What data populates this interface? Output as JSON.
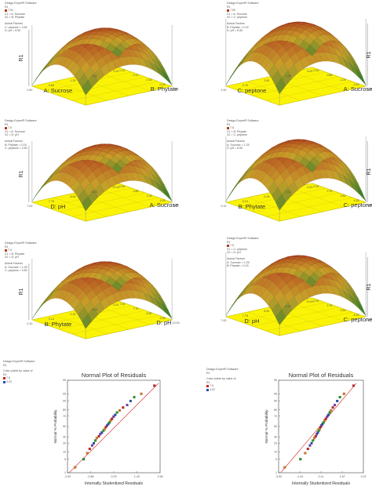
{
  "colors": {
    "surface_high": "#b23a1e",
    "surface_mid": "#c9a12a",
    "surface_low": "#2f7d2a",
    "floor": "#fbf306",
    "floor_edge": "#c9c300",
    "ref_line": "#d9534f",
    "point_colors": [
      "#1f4fbf",
      "#18a018",
      "#e07b1a",
      "#d02020",
      "#7a3ab0"
    ]
  },
  "chart_data": [
    {
      "type": "surface",
      "info_lines": [
        "Design-Expert® Software",
        "R1",
        "7.51",
        "",
        "X1 = A: Sucrose",
        "X2 = B: Phytate",
        "",
        "Actual Factors",
        "C: peptone = 3.50",
        "D: pH = 8.50"
      ],
      "zlabel": "R1",
      "xlabel": "A: Sucrose",
      "ylabel": "B: Phytate",
      "x_ticks": [
        "0.50",
        "0.88",
        "1.25",
        "1.63",
        "2.00"
      ],
      "y_ticks": [
        "0.10",
        "0.13",
        "0.15",
        "0.18",
        "0.20"
      ]
    },
    {
      "type": "surface",
      "info_lines": [
        "Design-Expert® Software",
        "R1",
        "7.52",
        "",
        "X1 = A: Sucrose",
        "X2 = C: peptone",
        "",
        "Actual Factors",
        "B: Phytate = 0.15",
        "D: pH = 8.50"
      ],
      "zlabel": "R1",
      "xlabel": "C: peptone",
      "ylabel": "A: Sucrose",
      "x_ticks": [
        "2.00",
        "2.75",
        "3.50",
        "4.25",
        "5.00"
      ],
      "y_ticks": [
        "0.50",
        "0.88",
        "1.25",
        "1.63",
        "2.00"
      ]
    },
    {
      "type": "surface",
      "info_lines": [
        "Design-Expert® Software",
        "R1",
        "7.5",
        "",
        "X1 = A: Sucrose",
        "X2 = D: pH",
        "",
        "Actual Factors",
        "B: Phytate = 0.15",
        "C: peptone = 3.50"
      ],
      "zlabel": "R1",
      "xlabel": "D: pH",
      "ylabel": "A: Sucrose",
      "x_ticks": [
        "7.00",
        "7.75",
        "8.50",
        "9.25",
        "10.00"
      ],
      "y_ticks": [
        "0.50",
        "0.88",
        "1.25",
        "1.63",
        "2.00"
      ]
    },
    {
      "type": "surface",
      "info_lines": [
        "Design-Expert® Software",
        "R1",
        "7.5",
        "",
        "X1 = B: Phytate",
        "X2 = C: peptone",
        "",
        "Actual Factors",
        "A: Sucrose = 1.25",
        "D: pH = 8.50"
      ],
      "zlabel": "R1",
      "xlabel": "B: Phytate",
      "ylabel": "C: peptone",
      "x_ticks": [
        "0.10",
        "0.13",
        "0.15",
        "0.18",
        "0.20"
      ],
      "y_ticks": [
        "2.00",
        "2.75",
        "3.50",
        "4.25",
        "5.00"
      ]
    },
    {
      "type": "surface",
      "info_lines": [
        "Design-Expert® Software",
        "R1",
        "7.5",
        "",
        "X1 = B: Phytate",
        "X2 = D: pH",
        "",
        "Actual Factors",
        "A: Sucrose = 1.25",
        "C: peptone = 3.50"
      ],
      "zlabel": "R1",
      "xlabel": "B: Phytate",
      "ylabel": "D: pH",
      "x_ticks": [
        "0.10",
        "0.13",
        "0.15",
        "0.18",
        "0.20"
      ],
      "y_ticks": [
        "7.00",
        "7.75",
        "8.50",
        "9.25",
        "10.00"
      ]
    },
    {
      "type": "surface",
      "info_lines": [
        "Design-Expert® Software",
        "R1",
        "7.5",
        "",
        "X1 = C: peptone",
        "X2 = D: pH",
        "",
        "Actual Factors",
        "A: Sucrose = 1.25",
        "B: Phytate = 0.15"
      ],
      "zlabel": "R1",
      "xlabel": "D: pH",
      "ylabel": "C: peptone",
      "x_ticks": [
        "7.00",
        "7.75",
        "8.50",
        "9.25",
        "10.00"
      ],
      "y_ticks": [
        "2.00",
        "2.75",
        "3.50",
        "4.25",
        "5.00"
      ]
    },
    {
      "type": "scatter",
      "info_lines": [
        "Design-Expert® Software",
        "R1",
        "",
        "Color points by value of",
        "R1",
        "7.5",
        "4.22"
      ],
      "title": "Normal Plot of Residuals",
      "xlabel": "Internally Studentized Residuals",
      "ylabel": "Normal % Probability",
      "x_ticks": [
        "-2.00",
        "-0.86",
        "0.29",
        "1.43",
        "2.58"
      ],
      "y_ticks": [
        "1",
        "5",
        "10",
        "20",
        "30",
        "50",
        "70",
        "80",
        "90",
        "95",
        "99"
      ],
      "xlim": [
        -2.0,
        2.58
      ],
      "ylim": [
        1,
        99
      ],
      "x": [
        -1.62,
        -1.2,
        -1.02,
        -0.9,
        -0.78,
        -0.7,
        -0.62,
        -0.55,
        -0.45,
        -0.38,
        -0.3,
        -0.22,
        -0.16,
        -0.1,
        -0.04,
        0.02,
        0.08,
        0.14,
        0.2,
        0.28,
        0.36,
        0.45,
        0.58,
        0.75,
        0.95,
        1.12,
        1.3,
        1.65,
        2.3
      ],
      "y": [
        2,
        5,
        9,
        13,
        17,
        20,
        24,
        28,
        31,
        35,
        38,
        42,
        45,
        49,
        52,
        55,
        58,
        62,
        65,
        69,
        72,
        76,
        79,
        83,
        86,
        90,
        93,
        95,
        98
      ]
    },
    {
      "type": "scatter",
      "info_lines": [
        "Design-Expert® Software",
        "R1",
        "",
        "Color points by value of",
        "R1",
        "7.5",
        "4.22"
      ],
      "title": "Normal Plot of Residuals",
      "xlabel": "Internally Studentized Residuals",
      "ylabel": "Normal % Probability",
      "x_ticks": [
        "-3.00",
        "-1.44",
        "0.11",
        "1.67",
        "3.22"
      ],
      "y_ticks": [
        "1",
        "5",
        "10",
        "20",
        "30",
        "50",
        "70",
        "80",
        "90",
        "95",
        "99"
      ],
      "xlim": [
        -3.0,
        3.22
      ],
      "ylim": [
        1,
        99
      ],
      "x": [
        -2.55,
        -1.4,
        -1.05,
        -0.85,
        -0.7,
        -0.58,
        -0.48,
        -0.38,
        -0.28,
        -0.2,
        -0.12,
        -0.05,
        0.02,
        0.08,
        0.15,
        0.22,
        0.3,
        0.38,
        0.47,
        0.56,
        0.65,
        0.75,
        0.85,
        0.98,
        1.12,
        1.3,
        1.5,
        1.8,
        2.5
      ],
      "y": [
        2,
        5,
        9,
        13,
        17,
        20,
        24,
        28,
        31,
        35,
        38,
        42,
        45,
        49,
        52,
        55,
        58,
        62,
        65,
        69,
        72,
        76,
        79,
        83,
        86,
        90,
        93,
        95,
        98
      ]
    }
  ]
}
